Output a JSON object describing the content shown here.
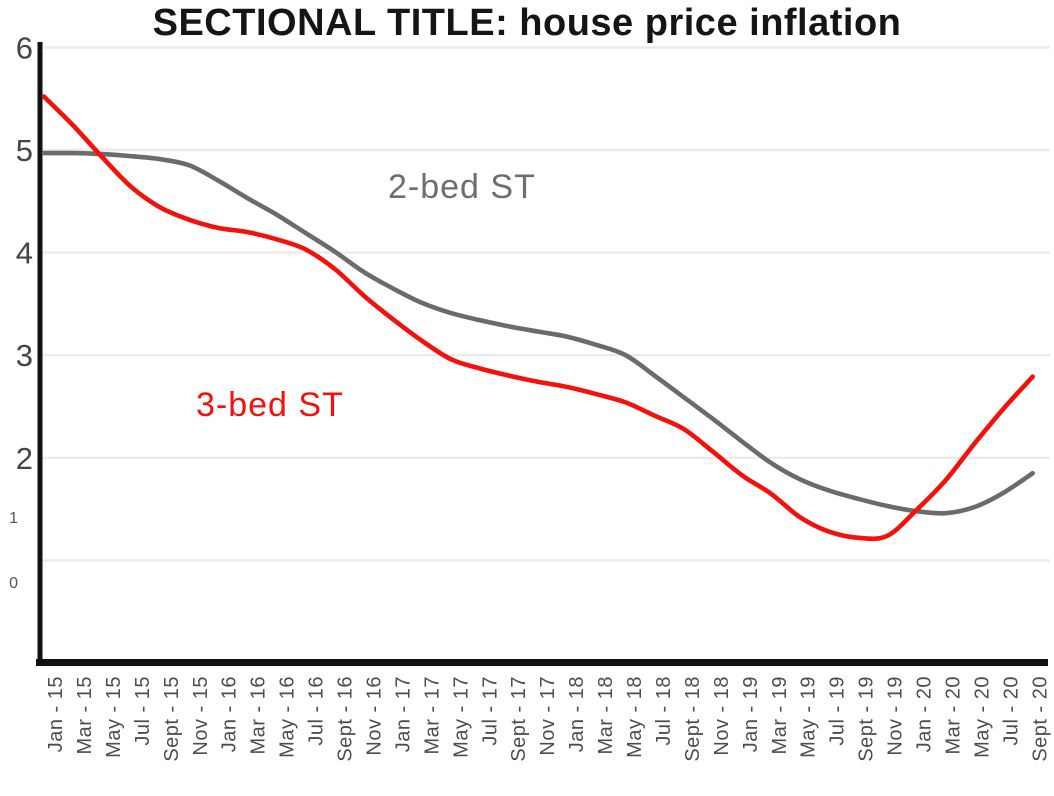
{
  "title": "SECTIONAL TITLE: house price inflation",
  "annotations": {
    "gray_series_label": "2-bed ST",
    "red_series_label": "3-bed ST"
  },
  "colors": {
    "red_line": "#f5100c",
    "gray_line": "#6b6b6b",
    "grid": "#ebebeb",
    "axis": "#111111",
    "y_tick_text": "#454545",
    "x_tick_text": "#4d4d4d",
    "title_text": "#151515"
  },
  "chart_data": {
    "type": "line",
    "title": "SECTIONAL TITLE: house price inflation",
    "xlabel": "",
    "ylabel": "",
    "ylim": [
      0,
      6
    ],
    "grid": "horizontal",
    "gridline_values": [
      1,
      2,
      3,
      4,
      5,
      6
    ],
    "y_ticks_major": [
      6,
      5,
      4,
      3,
      2
    ],
    "y_ticks_minor": [
      1,
      0
    ],
    "legend_position": "inline-annotations",
    "x_tick_labels": [
      "Jan - 15",
      "Mar - 15",
      "May - 15",
      "Jul - 15",
      "Sept - 15",
      "Nov - 15",
      "Jan - 16",
      "Mar - 16",
      "May - 16",
      "Jul - 16",
      "Sept - 16",
      "Nov - 16",
      "Jan - 17",
      "Mar - 17",
      "May - 17",
      "Jul - 17",
      "Sept - 17",
      "Nov - 17",
      "Jan - 18",
      "Mar - 18",
      "May - 18",
      "Jul - 18",
      "Sept - 18",
      "Nov - 18",
      "Jan - 19",
      "Mar - 19",
      "May - 19",
      "Jul - 19",
      "Sept - 19",
      "Nov - 19",
      "Jan - 20",
      "Mar - 20",
      "May - 20",
      "Jul - 20",
      "Sept - 20"
    ],
    "series": [
      {
        "name": "2-bed ST",
        "color": "#6b6b6b",
        "values": [
          4.97,
          4.97,
          4.96,
          4.94,
          4.91,
          4.85,
          4.7,
          4.53,
          4.37,
          4.19,
          4.01,
          3.81,
          3.65,
          3.51,
          3.41,
          3.34,
          3.28,
          3.23,
          3.18,
          3.1,
          3.0,
          2.8,
          2.59,
          2.38,
          2.16,
          1.95,
          1.79,
          1.68,
          1.6,
          1.53,
          1.48,
          1.46,
          1.52,
          1.66,
          1.85
        ]
      },
      {
        "name": "3-bed ST",
        "color": "#f5100c",
        "values": [
          5.52,
          5.24,
          4.93,
          4.64,
          4.44,
          4.32,
          4.24,
          4.2,
          4.13,
          4.03,
          3.84,
          3.58,
          3.35,
          3.14,
          2.96,
          2.87,
          2.8,
          2.74,
          2.69,
          2.62,
          2.54,
          2.41,
          2.28,
          2.06,
          1.83,
          1.65,
          1.42,
          1.28,
          1.22,
          1.24,
          1.49,
          1.78,
          2.14,
          2.48,
          2.79
        ]
      }
    ]
  }
}
